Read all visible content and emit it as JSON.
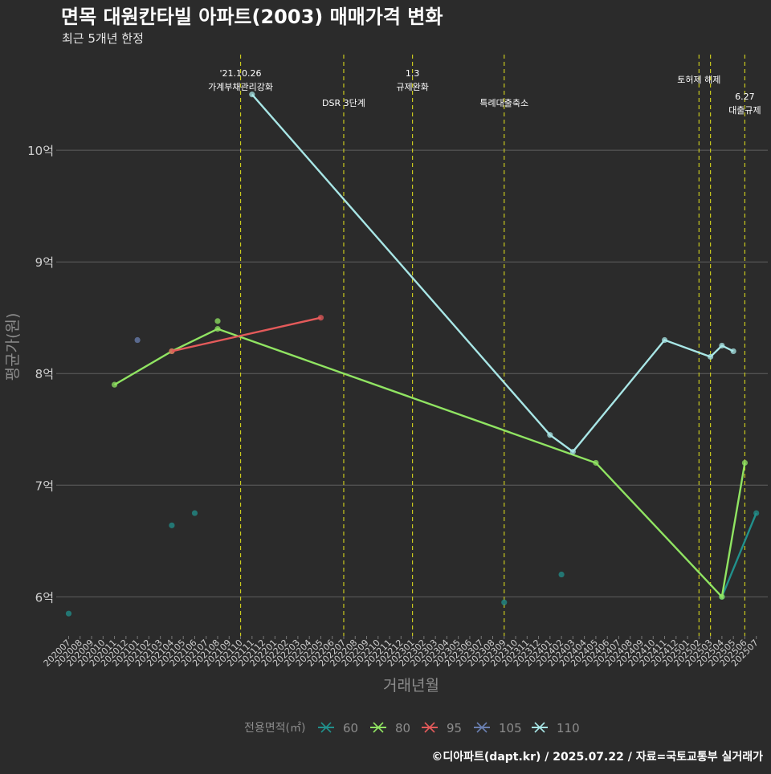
{
  "header": {
    "title": "면목 대원칸타빌 아파트(2003) 매매가격 변화",
    "subtitle": "최근 5개년 한정"
  },
  "footer": {
    "caption": "©디아파트(dapt.kr) / 2025.07.22 / 자료=국토교통부 실거래가"
  },
  "colors": {
    "background": "#2b2b2b",
    "grid": "#5f5f5f",
    "vline": "#c8c81e",
    "axis_text": "#cfcfcf",
    "axis_title": "#8c8c8c",
    "title": "#ffffff"
  },
  "chart_data": {
    "type": "line",
    "xlabel": "거래년월",
    "ylabel": "평균가(원)",
    "x_categories": [
      "202007",
      "202008",
      "202009",
      "202010",
      "202011",
      "202012",
      "202101",
      "202102",
      "202103",
      "202104",
      "202105",
      "202106",
      "202107",
      "202108",
      "202109",
      "202110",
      "202111",
      "202112",
      "202201",
      "202202",
      "202203",
      "202204",
      "202205",
      "202206",
      "202207",
      "202208",
      "202209",
      "202210",
      "202211",
      "202212",
      "202301",
      "202302",
      "202303",
      "202304",
      "202305",
      "202306",
      "202307",
      "202308",
      "202309",
      "202310",
      "202311",
      "202312",
      "202401",
      "202402",
      "202403",
      "202404",
      "202405",
      "202406",
      "202407",
      "202408",
      "202409",
      "202410",
      "202411",
      "202412",
      "202501",
      "202502",
      "202503",
      "202504",
      "202505",
      "202506",
      "202507"
    ],
    "y_ticks": [
      {
        "value": 60000,
        "label": "6억"
      },
      {
        "value": 70000,
        "label": "7억"
      },
      {
        "value": 80000,
        "label": "8억"
      },
      {
        "value": 90000,
        "label": "9억"
      },
      {
        "value": 100000,
        "label": "10억"
      }
    ],
    "ylim": [
      56500,
      109000
    ],
    "y_unit": "만원",
    "grid": true,
    "legend_position": "bottom",
    "legend_title": "전용면적(㎡)",
    "series": [
      {
        "name": "60",
        "color": "#21908c",
        "points": [
          [
            "202007",
            58500
          ],
          [
            "202104",
            66400
          ],
          [
            "202106",
            67500
          ],
          [
            "202309",
            59500
          ],
          [
            "202402",
            62000
          ],
          [
            "202504",
            60000
          ],
          [
            "202507",
            67500
          ]
        ]
      },
      {
        "name": "80",
        "color": "#90e462",
        "points": [
          [
            "202011",
            79000
          ],
          [
            "202104",
            82000
          ],
          [
            "202108",
            84000
          ],
          [
            "202108",
            84700
          ],
          [
            "202405",
            72000
          ],
          [
            "202504",
            60000
          ],
          [
            "202506",
            72000
          ]
        ]
      },
      {
        "name": "95",
        "color": "#e45a5a",
        "points": [
          [
            "202104",
            82000
          ],
          [
            "202205",
            85000
          ]
        ]
      },
      {
        "name": "105",
        "color": "#6a7fb0",
        "points": [
          [
            "202101",
            83000
          ]
        ]
      },
      {
        "name": "110",
        "color": "#a8e6e6",
        "points": [
          [
            "202111",
            105000
          ],
          [
            "202401",
            74500
          ],
          [
            "202403",
            73000
          ],
          [
            "202411",
            83000
          ],
          [
            "202503",
            81500
          ],
          [
            "202504",
            82500
          ],
          [
            "202505",
            82000
          ]
        ]
      }
    ],
    "event_lines": [
      {
        "x": "202110",
        "label": "'21.10.26\n가계부채관리강화",
        "level": 0
      },
      {
        "x": "202207",
        "label": "DSR 3단계",
        "level": 2
      },
      {
        "x": "202301",
        "label": "1.3\n규제완화",
        "level": 0
      },
      {
        "x": "202309",
        "label": "특례대출축소",
        "level": 2
      },
      {
        "x": "202502",
        "label": "토허제 해제",
        "level": 1
      },
      {
        "x": "202503",
        "label": "",
        "level": 1
      },
      {
        "x": "202506",
        "label": "6.27\n대출규제",
        "level": 3
      }
    ]
  }
}
